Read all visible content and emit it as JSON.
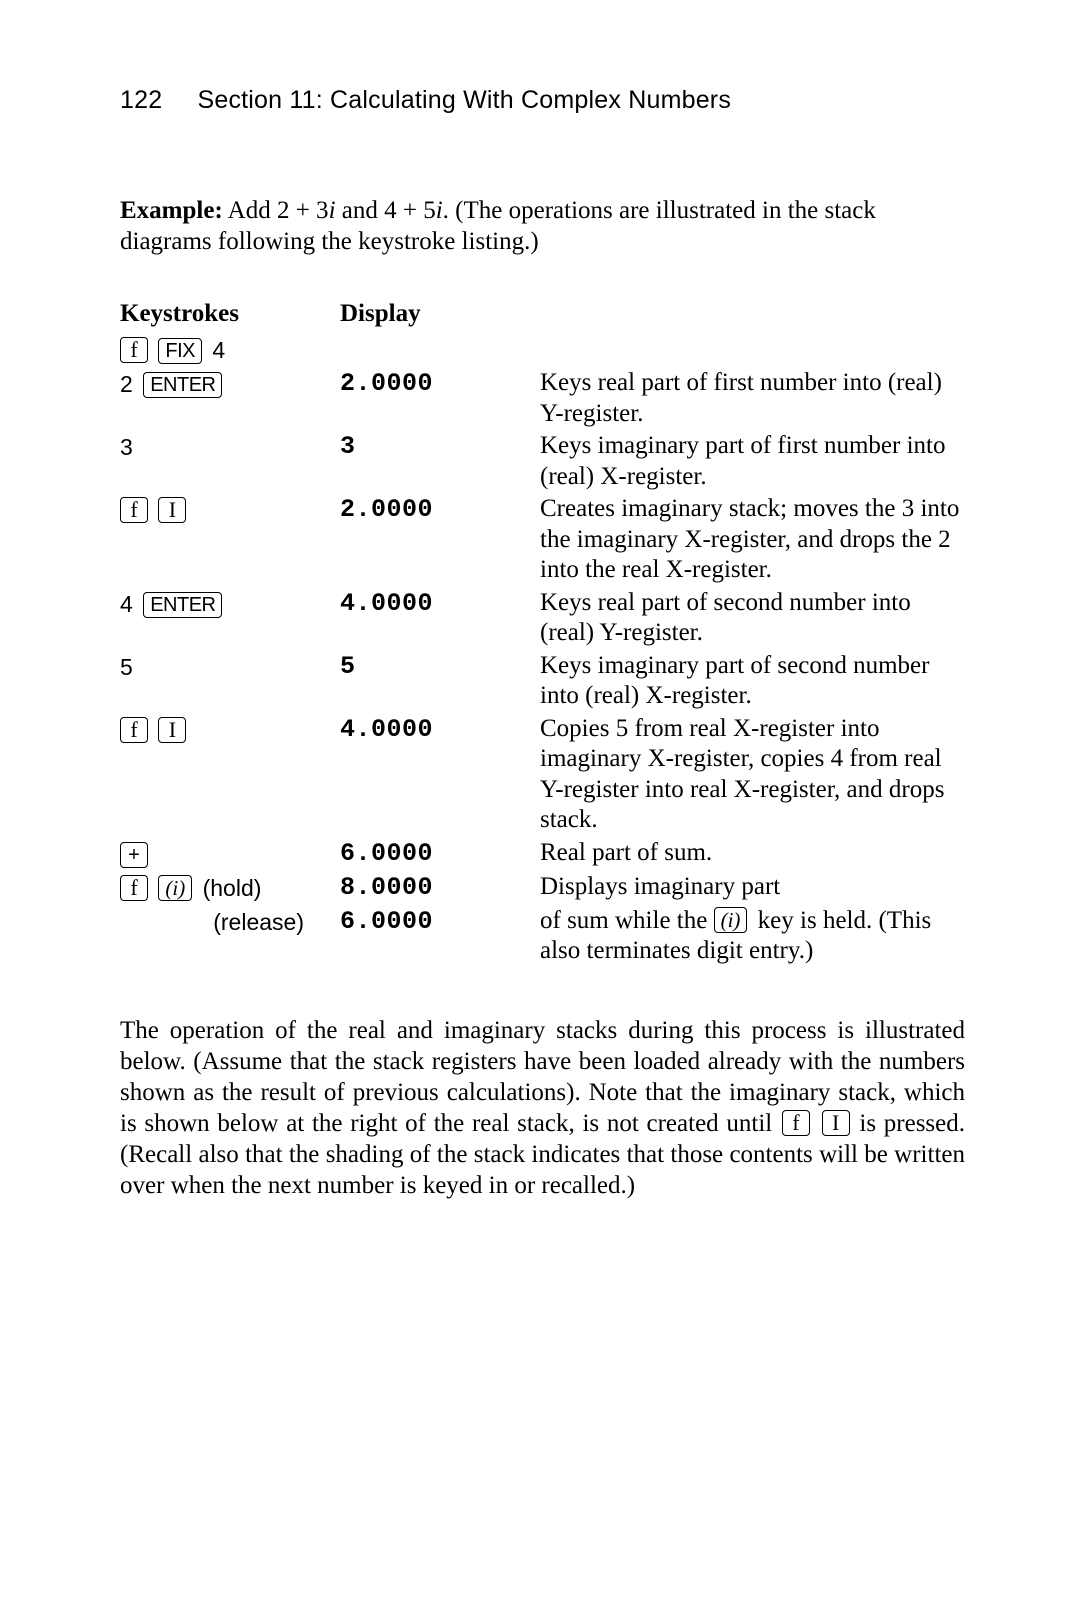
{
  "pageNumber": "122",
  "sectionTitle": "Section 11: Calculating With Complex Numbers",
  "example": {
    "label": "Example:",
    "pre": " Add 2 + 3",
    "mid1": " and 4 + 5",
    "post": ". (The operations are illustrated in the stack diagrams following the keystroke listing.)",
    "ivar": "i"
  },
  "headers": {
    "keystrokes": "Keystrokes",
    "display": "Display"
  },
  "keys": {
    "f": "f",
    "fix": "FIX",
    "four": "4",
    "two": "2",
    "enter": "ENTER",
    "three": "3",
    "I": "I",
    "five": "5",
    "plus": "+",
    "iparen": "(i)",
    "hold": "(hold)",
    "release": "(release)"
  },
  "rows": [
    {
      "display": "",
      "explain": ""
    },
    {
      "display": "2.0000",
      "explain": "Keys real part of first number into (real) Y-register."
    },
    {
      "display": "3",
      "explain": "Keys imaginary part of first number into (real) X-register."
    },
    {
      "display": "2.0000",
      "explain": "Creates imaginary stack; moves the 3 into the imaginary X-register, and drops the 2 into the real X-register."
    },
    {
      "display": "4.0000",
      "explain": "Keys real part of second number into (real) Y-register."
    },
    {
      "display": "5",
      "explain": "Keys imaginary part of second number into (real) X-register."
    },
    {
      "display": "4.0000",
      "explain": "Copies 5 from real X-register into imaginary X-register, copies 4 from real Y-register into real X-register, and drops stack."
    },
    {
      "display": "6.0000",
      "explain": "Real part of sum."
    },
    {
      "display": "8.0000",
      "explain": "Displays imaginary part"
    },
    {
      "display": "6.0000",
      "explainA": "of sum while the ",
      "explainB": " key is held. (This also terminates digit entry.)"
    }
  ],
  "bottom": {
    "a": "The operation of the real and imaginary stacks during this process is illustrated below. (Assume that the stack registers have been loaded already with the numbers shown as the result of previous calculations). Note that the imaginary stack, which is shown below at the right of the real stack, is not created until ",
    "b": " is pressed. (Recall also that the shading of the stack indicates that those contents will be written over when the next number is keyed in or recalled.)"
  }
}
